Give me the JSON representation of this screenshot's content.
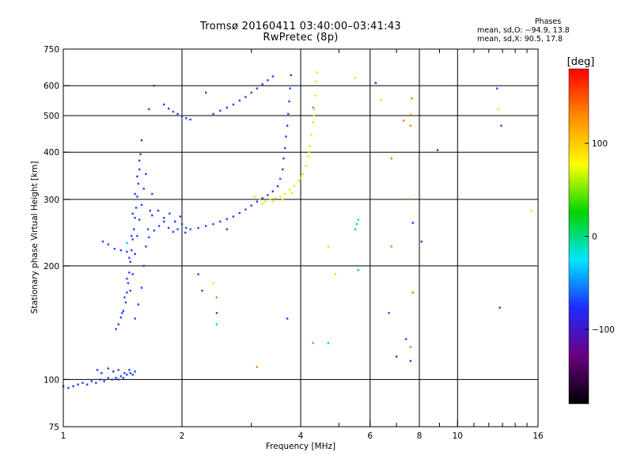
{
  "header": {
    "title": "Tromsø 20160411 03:40:00–03:41:43",
    "subtitle": "RwPretec (8p)"
  },
  "phase_info": {
    "title": "Phases",
    "o_line": "mean, sd,O:  −94.9, 13.8",
    "x_line": "mean, sd,X:  90.5, 17.8"
  },
  "colorbar": {
    "label": "[deg]",
    "ticks": [
      "100",
      "0",
      "−100"
    ],
    "tick_values": [
      100,
      0,
      -100
    ],
    "range": [
      -180,
      180
    ],
    "colors": [
      "#000000",
      "#6a0080",
      "#1e2bff",
      "#00e5ff",
      "#00d400",
      "#ffff00",
      "#ff8c00",
      "#ff0000"
    ]
  },
  "chart_data": {
    "type": "scatter",
    "title": "Tromsø 20160411 03:40:00–03:41:43",
    "subtitle": "RwPretec (8p)",
    "xlabel": "Frequency [MHz]",
    "ylabel": "Stationary phase Virtual Height [km]",
    "x_scale": "log",
    "y_scale": "log",
    "xlim": [
      1,
      16
    ],
    "ylim": [
      75,
      750
    ],
    "grid": true,
    "x_ticks": [
      1,
      2,
      4,
      6,
      8,
      10,
      16
    ],
    "x_tick_labels": [
      "1",
      "2",
      "4",
      "6",
      "8",
      "10",
      "16"
    ],
    "y_ticks": [
      75,
      100,
      200,
      300,
      400,
      500,
      600,
      750
    ],
    "y_tick_labels": [
      "75",
      "100",
      "200",
      "300",
      "400",
      "500",
      "600",
      "750"
    ],
    "x_gridlines": [
      2,
      4,
      6,
      8,
      10
    ],
    "y_gridlines": [
      100,
      200,
      300,
      400,
      500,
      600
    ],
    "series": [
      {
        "mode": "O",
        "color": "#1f3fff",
        "points": [
          [
            1.0,
            96
          ],
          [
            1.03,
            95
          ],
          [
            1.06,
            96
          ],
          [
            1.09,
            97
          ],
          [
            1.12,
            98
          ],
          [
            1.15,
            97
          ],
          [
            1.18,
            99
          ],
          [
            1.21,
            98
          ],
          [
            1.24,
            100
          ],
          [
            1.27,
            99
          ],
          [
            1.3,
            101
          ],
          [
            1.33,
            100
          ],
          [
            1.36,
            101
          ],
          [
            1.38,
            100
          ],
          [
            1.4,
            102
          ],
          [
            1.42,
            101
          ],
          [
            1.45,
            103
          ],
          [
            1.48,
            104
          ],
          [
            1.5,
            103
          ],
          [
            1.22,
            106
          ],
          [
            1.25,
            104
          ],
          [
            1.3,
            107
          ],
          [
            1.34,
            105
          ],
          [
            1.38,
            106
          ],
          [
            1.43,
            104
          ],
          [
            1.47,
            106
          ],
          [
            1.52,
            105
          ],
          [
            1.36,
            136
          ],
          [
            1.38,
            140
          ],
          [
            1.4,
            146
          ],
          [
            1.42,
            152
          ],
          [
            1.44,
            160
          ],
          [
            1.45,
            170
          ],
          [
            1.46,
            180
          ],
          [
            1.47,
            192
          ],
          [
            1.48,
            205
          ],
          [
            1.49,
            220
          ],
          [
            1.5,
            235
          ],
          [
            1.51,
            250
          ],
          [
            1.52,
            268
          ],
          [
            1.53,
            285
          ],
          [
            1.54,
            305
          ],
          [
            1.55,
            330
          ],
          [
            1.56,
            360
          ],
          [
            1.57,
            395
          ],
          [
            1.58,
            430
          ],
          [
            1.41,
            150
          ],
          [
            1.43,
            165
          ],
          [
            1.45,
            185
          ],
          [
            1.47,
            210
          ],
          [
            1.49,
            240
          ],
          [
            1.5,
            275
          ],
          [
            1.52,
            310
          ],
          [
            1.54,
            345
          ],
          [
            1.56,
            380
          ],
          [
            1.48,
            172
          ],
          [
            1.5,
            190
          ],
          [
            1.52,
            215
          ],
          [
            1.54,
            240
          ],
          [
            1.56,
            265
          ],
          [
            1.58,
            290
          ],
          [
            1.6,
            320
          ],
          [
            1.62,
            350
          ],
          [
            1.52,
            145
          ],
          [
            1.55,
            158
          ],
          [
            1.58,
            175
          ],
          [
            1.6,
            200
          ],
          [
            1.62,
            225
          ],
          [
            1.64,
            250
          ],
          [
            1.66,
            280
          ],
          [
            1.68,
            310
          ],
          [
            1.65,
            238
          ],
          [
            1.7,
            248
          ],
          [
            1.75,
            255
          ],
          [
            1.8,
            262
          ],
          [
            1.85,
            252
          ],
          [
            1.9,
            246
          ],
          [
            1.95,
            250
          ],
          [
            2.0,
            258
          ],
          [
            2.05,
            252
          ],
          [
            1.68,
            272
          ],
          [
            1.74,
            280
          ],
          [
            1.8,
            268
          ],
          [
            1.86,
            275
          ],
          [
            1.92,
            262
          ],
          [
            1.98,
            270
          ],
          [
            2.04,
            245
          ],
          [
            1.26,
            232
          ],
          [
            1.3,
            228
          ],
          [
            1.35,
            222
          ],
          [
            1.4,
            220
          ],
          [
            1.45,
            218
          ],
          [
            1.8,
            535
          ],
          [
            1.85,
            522
          ],
          [
            1.9,
            512
          ],
          [
            1.95,
            505
          ],
          [
            2.0,
            498
          ],
          [
            2.05,
            492
          ],
          [
            2.1,
            488
          ],
          [
            2.1,
            250
          ],
          [
            2.2,
            252
          ],
          [
            2.3,
            255
          ],
          [
            2.4,
            258
          ],
          [
            2.5,
            262
          ],
          [
            2.6,
            266
          ],
          [
            2.7,
            270
          ],
          [
            2.8,
            276
          ],
          [
            2.9,
            282
          ],
          [
            3.0,
            289
          ],
          [
            3.1,
            296
          ],
          [
            3.2,
            302
          ],
          [
            3.3,
            308
          ],
          [
            3.4,
            315
          ],
          [
            3.5,
            325
          ],
          [
            3.55,
            340
          ],
          [
            3.6,
            360
          ],
          [
            3.62,
            385
          ],
          [
            3.65,
            410
          ],
          [
            3.67,
            440
          ],
          [
            3.7,
            470
          ],
          [
            3.72,
            505
          ],
          [
            3.74,
            545
          ],
          [
            3.76,
            590
          ],
          [
            3.78,
            640
          ],
          [
            2.4,
            505
          ],
          [
            2.5,
            515
          ],
          [
            2.6,
            525
          ],
          [
            2.7,
            535
          ],
          [
            2.8,
            548
          ],
          [
            2.9,
            560
          ],
          [
            3.0,
            575
          ],
          [
            3.1,
            590
          ],
          [
            3.2,
            605
          ],
          [
            3.3,
            620
          ],
          [
            3.4,
            635
          ],
          [
            2.3,
            575
          ],
          [
            1.65,
            520
          ],
          [
            1.7,
            600
          ],
          [
            2.2,
            190
          ],
          [
            2.25,
            172
          ],
          [
            2.45,
            150
          ],
          [
            2.6,
            250
          ],
          [
            3.7,
            145
          ],
          [
            7.0,
            115
          ],
          [
            7.4,
            128
          ],
          [
            7.6,
            112
          ],
          [
            7.7,
            260
          ],
          [
            8.1,
            232
          ],
          [
            8.9,
            405
          ],
          [
            12.8,
            155
          ],
          [
            12.6,
            590
          ],
          [
            12.9,
            470
          ],
          [
            6.7,
            150
          ],
          [
            6.2,
            610
          ]
        ]
      },
      {
        "mode": "X",
        "color": "#e6e600",
        "points": [
          [
            3.05,
            305
          ],
          [
            3.15,
            300
          ],
          [
            3.25,
            296
          ],
          [
            3.35,
            300
          ],
          [
            3.45,
            302
          ],
          [
            3.55,
            305
          ],
          [
            3.65,
            310
          ],
          [
            3.75,
            318
          ],
          [
            3.85,
            326
          ],
          [
            3.95,
            336
          ],
          [
            4.05,
            350
          ],
          [
            4.12,
            368
          ],
          [
            4.18,
            390
          ],
          [
            4.22,
            415
          ],
          [
            4.26,
            445
          ],
          [
            4.3,
            480
          ],
          [
            4.33,
            520
          ],
          [
            4.36,
            565
          ],
          [
            4.38,
            615
          ],
          [
            4.4,
            650
          ],
          [
            3.2,
            292
          ],
          [
            3.4,
            296
          ],
          [
            3.6,
            300
          ],
          [
            3.8,
            312
          ],
          [
            4.0,
            342
          ],
          [
            4.2,
            400
          ],
          [
            4.32,
            500
          ],
          [
            2.4,
            180
          ],
          [
            4.9,
            190
          ],
          [
            4.7,
            225
          ],
          [
            5.5,
            630
          ],
          [
            6.4,
            550
          ],
          [
            7.6,
            505
          ],
          [
            12.7,
            520
          ],
          [
            15.4,
            280
          ]
        ]
      },
      {
        "mode": "other",
        "color": "#ff7a00",
        "points": [
          [
            2.45,
            165
          ],
          [
            3.1,
            108
          ],
          [
            4.3,
            125
          ],
          [
            6.8,
            385
          ],
          [
            7.3,
            485
          ],
          [
            7.6,
            470
          ],
          [
            7.5,
            300
          ],
          [
            6.8,
            225
          ],
          [
            7.65,
            555
          ],
          [
            7.7,
            170
          ],
          [
            7.6,
            122
          ]
        ]
      },
      {
        "mode": "other",
        "color": "#00c8ff",
        "points": [
          [
            1.45,
            230
          ],
          [
            3.95,
            600
          ],
          [
            4.7,
            125
          ],
          [
            5.6,
            265
          ],
          [
            5.55,
            258
          ],
          [
            5.6,
            195
          ],
          [
            2.45,
            140
          ],
          [
            4.3,
            525
          ],
          [
            5.5,
            250
          ]
        ]
      }
    ]
  }
}
